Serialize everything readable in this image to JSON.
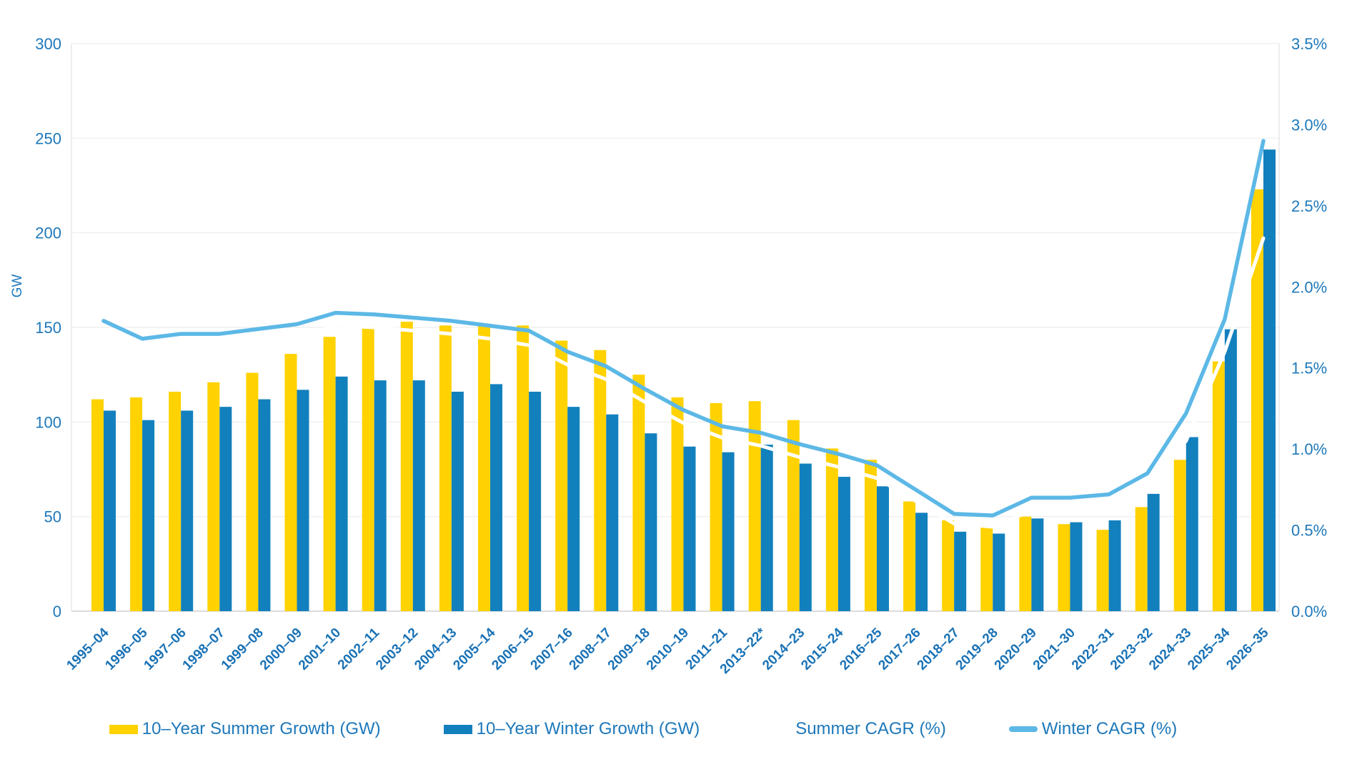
{
  "chart_data": {
    "type": "bar",
    "subtype": "grouped-bars-with-lines-dual-axis",
    "title": "",
    "categories": [
      "1995–04",
      "1996–05",
      "1997–06",
      "1998–07",
      "1999–08",
      "2000–09",
      "2001–10",
      "2002–11",
      "2003–12",
      "2004–13",
      "2005–14",
      "2006–15",
      "2007–16",
      "2008–17",
      "2009–18",
      "2010–19",
      "2011–21",
      "2013–22*",
      "2014–23",
      "2015–24",
      "2016–25",
      "2017–26",
      "2018–27",
      "2019–28",
      "2020–29",
      "2021–30",
      "2022–31",
      "2023–32",
      "2024–33",
      "2025–34",
      "2026–35"
    ],
    "series": [
      {
        "name": "10–Year Summer Growth (GW)",
        "type": "bar",
        "axis": "left",
        "color": "#FFD200",
        "values": [
          112,
          113,
          116,
          121,
          126,
          136,
          145,
          151,
          153,
          151,
          152,
          151,
          143,
          138,
          125,
          113,
          110,
          111,
          101,
          86,
          80,
          58,
          48,
          45,
          50,
          46,
          43,
          55,
          80,
          132,
          223
        ]
      },
      {
        "name": "10–Year Winter Growth (GW)",
        "type": "bar",
        "axis": "left",
        "color": "#1380BE",
        "values": [
          106,
          101,
          106,
          108,
          112,
          117,
          124,
          122,
          122,
          116,
          120,
          116,
          108,
          104,
          94,
          87,
          84,
          88,
          78,
          71,
          66,
          52,
          42,
          41,
          49,
          47,
          48,
          62,
          92,
          149,
          244
        ]
      },
      {
        "name": "Summer CAGR (%)",
        "type": "line",
        "axis": "right",
        "color": "#FFFFFF",
        "values": [
          1.71,
          1.61,
          1.63,
          1.63,
          1.66,
          1.69,
          1.76,
          1.75,
          1.73,
          1.71,
          1.68,
          1.64,
          1.52,
          1.43,
          1.29,
          1.16,
          1.07,
          1.02,
          0.95,
          0.89,
          0.82,
          0.68,
          0.54,
          0.52,
          0.62,
          0.63,
          0.64,
          0.76,
          1.05,
          1.6,
          2.3
        ]
      },
      {
        "name": "Winter CAGR (%)",
        "type": "line",
        "axis": "right",
        "color": "#5CB8E6",
        "values": [
          1.79,
          1.68,
          1.71,
          1.71,
          1.74,
          1.77,
          1.84,
          1.83,
          1.81,
          1.79,
          1.76,
          1.73,
          1.6,
          1.51,
          1.37,
          1.24,
          1.14,
          1.1,
          1.03,
          0.97,
          0.9,
          0.75,
          0.6,
          0.59,
          0.7,
          0.7,
          0.72,
          0.85,
          1.22,
          1.8,
          2.9
        ]
      }
    ],
    "left_axis": {
      "title": "GW",
      "min": 0,
      "max": 300,
      "tick_labels": [
        "0",
        "50",
        "100",
        "150",
        "200",
        "250",
        "300"
      ]
    },
    "right_axis": {
      "title": "",
      "min": 0,
      "max": 3.5,
      "tick_labels": [
        "0.0%",
        "0.5%",
        "1.0%",
        "1.5%",
        "2.0%",
        "2.5%",
        "3.0%",
        "3.5%"
      ]
    },
    "grid": "horizontal",
    "legend_position": "bottom",
    "colors": {
      "axis_text": "#1d78ba",
      "x_label_text": "#1a72b5",
      "gridline": "#f0f0f0",
      "axis_line": "#dcdcdc",
      "background": "#ffffff"
    }
  },
  "legend": {
    "items": [
      {
        "label": "10–Year Summer Growth (GW)",
        "swatch": "square",
        "color": "#FFD200"
      },
      {
        "label": "10–Year Winter Growth (GW)",
        "swatch": "square",
        "color": "#1380BE"
      },
      {
        "label": "Summer CAGR (%)",
        "swatch": "line-white",
        "color": "#FFFFFF"
      },
      {
        "label": "Winter CAGR (%)",
        "swatch": "line",
        "color": "#5CB8E6"
      }
    ]
  }
}
